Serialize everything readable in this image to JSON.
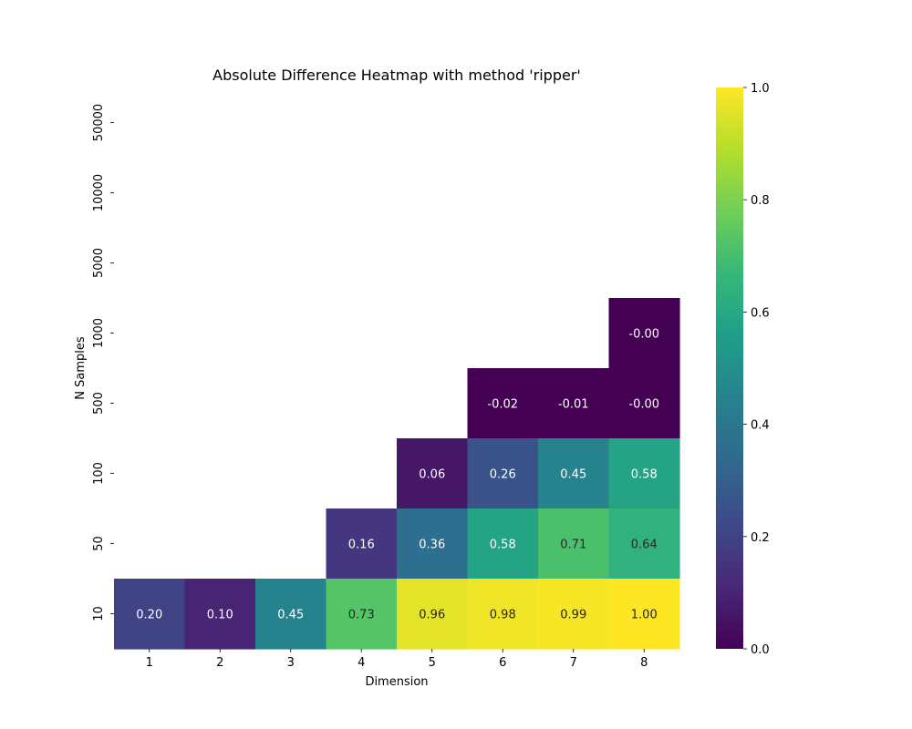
{
  "chart_data": {
    "type": "heatmap",
    "title": "Absolute Difference Heatmap with method 'ripper'",
    "xlabel": "Dimension",
    "ylabel": "N Samples",
    "x_categories": [
      "1",
      "2",
      "3",
      "4",
      "5",
      "6",
      "7",
      "8"
    ],
    "y_categories": [
      "50000",
      "10000",
      "5000",
      "1000",
      "500",
      "100",
      "50",
      "10"
    ],
    "values": [
      [
        null,
        null,
        null,
        null,
        null,
        null,
        null,
        null
      ],
      [
        null,
        null,
        null,
        null,
        null,
        null,
        null,
        null
      ],
      [
        null,
        null,
        null,
        null,
        null,
        null,
        null,
        null
      ],
      [
        null,
        null,
        null,
        null,
        null,
        null,
        null,
        -0.001
      ],
      [
        null,
        null,
        null,
        null,
        null,
        -0.02,
        -0.01,
        -0.001
      ],
      [
        null,
        null,
        null,
        null,
        0.06,
        0.26,
        0.45,
        0.58
      ],
      [
        null,
        null,
        null,
        0.16,
        0.36,
        0.58,
        0.71,
        0.64
      ],
      [
        0.2,
        0.1,
        0.45,
        0.73,
        0.96,
        0.98,
        0.99,
        1.0
      ]
    ],
    "labels": [
      [
        null,
        null,
        null,
        null,
        null,
        null,
        null,
        null
      ],
      [
        null,
        null,
        null,
        null,
        null,
        null,
        null,
        null
      ],
      [
        null,
        null,
        null,
        null,
        null,
        null,
        null,
        null
      ],
      [
        null,
        null,
        null,
        null,
        null,
        null,
        null,
        "-0.00"
      ],
      [
        null,
        null,
        null,
        null,
        null,
        "-0.02",
        "-0.01",
        "-0.00"
      ],
      [
        null,
        null,
        null,
        null,
        "0.06",
        "0.26",
        "0.45",
        "0.58"
      ],
      [
        null,
        null,
        null,
        "0.16",
        "0.36",
        "0.58",
        "0.71",
        "0.64"
      ],
      [
        "0.20",
        "0.10",
        "0.45",
        "0.73",
        "0.96",
        "0.98",
        "0.99",
        "1.00"
      ]
    ],
    "colormap": "viridis",
    "vmin": 0.0,
    "vmax": 1.0,
    "colorbar": {
      "ticks": [
        0.0,
        0.2,
        0.4,
        0.6,
        0.8,
        1.0
      ],
      "tick_labels": [
        "0.0",
        "0.2",
        "0.4",
        "0.6",
        "0.8",
        "1.0"
      ]
    },
    "grid": false
  }
}
